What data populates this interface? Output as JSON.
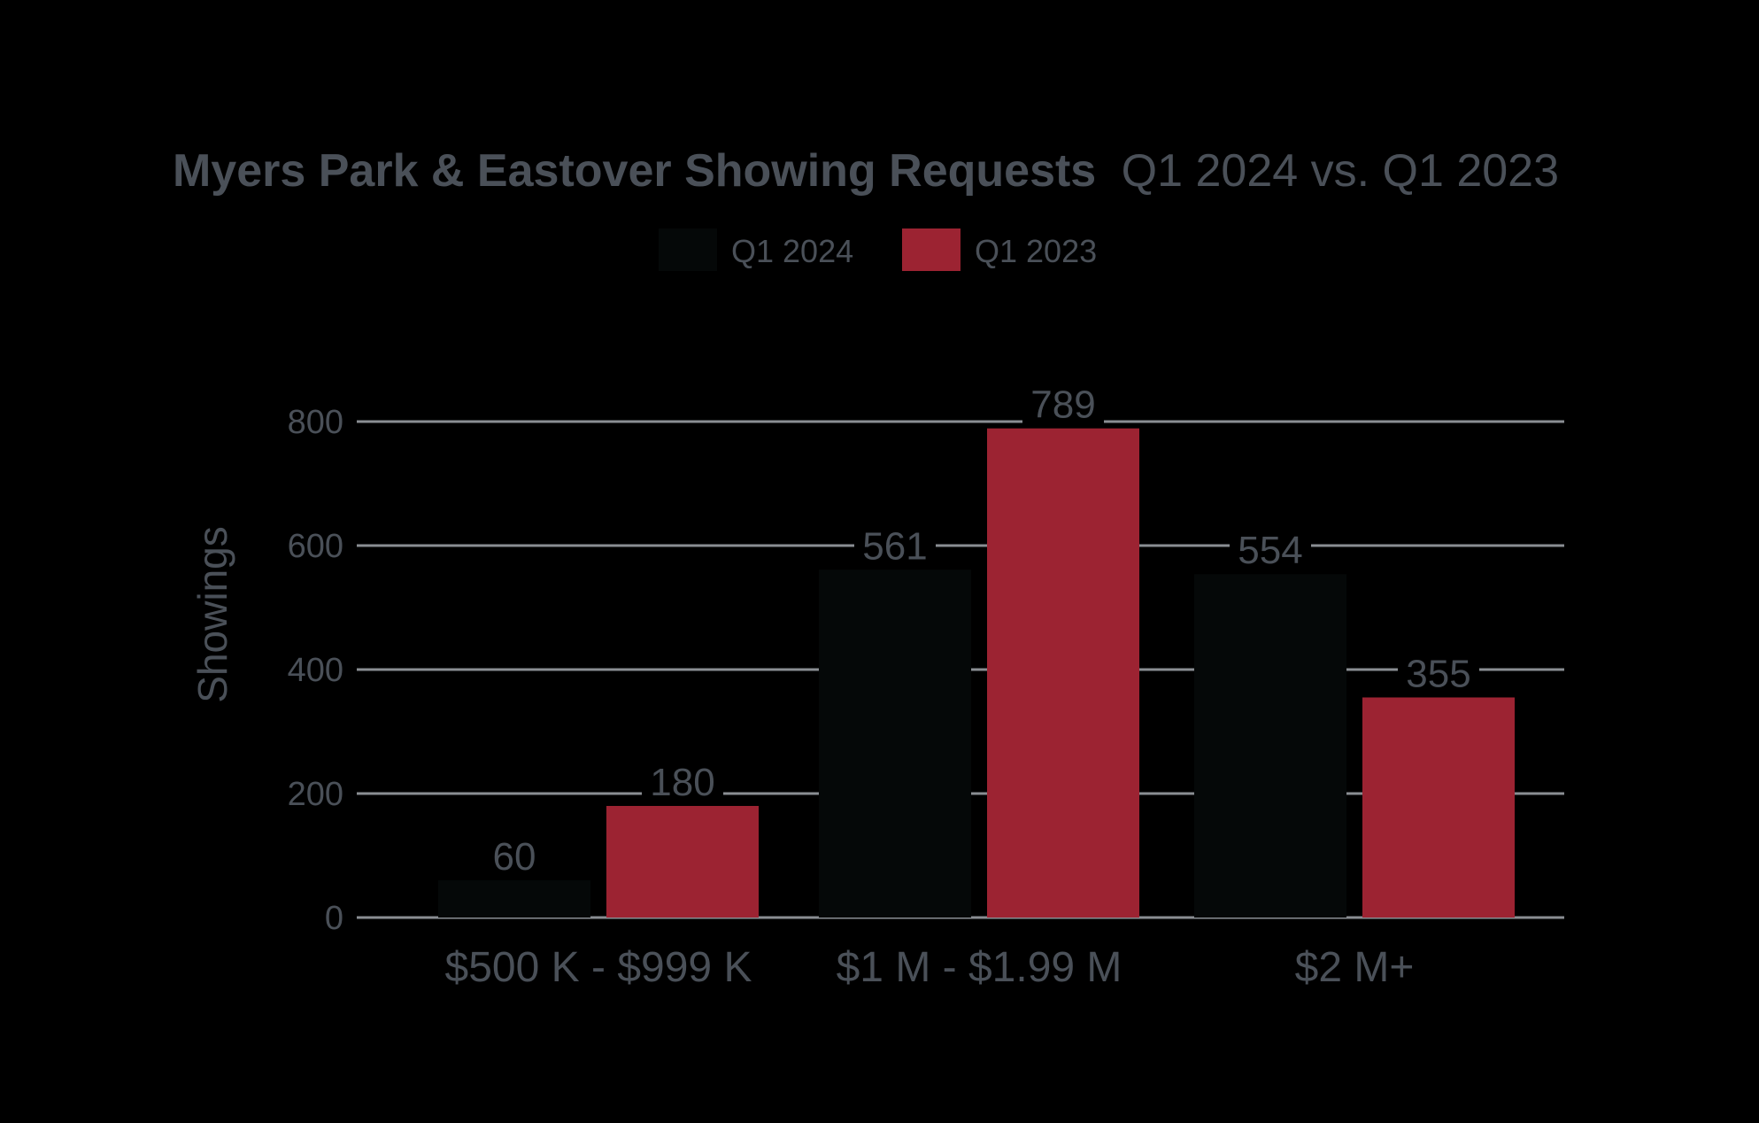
{
  "chart_data": {
    "type": "bar",
    "title_bold": "Myers Park & Eastover Showing Requests",
    "title_rest": "Q1 2024 vs. Q1 2023",
    "xlabel": "",
    "ylabel": "Showings",
    "ylim": [
      0,
      800
    ],
    "yticks": [
      0,
      200,
      400,
      600,
      800
    ],
    "grid": true,
    "legend_position": "top-center",
    "categories": [
      "$500 K - $999 K",
      "$1 M - $1.99 M",
      "$2 M+"
    ],
    "series": [
      {
        "name": "Q1 2024",
        "values": [
          60,
          561,
          554
        ],
        "color": "#050808"
      },
      {
        "name": "Q1 2023",
        "values": [
          180,
          789,
          355
        ],
        "color": "#9c2332"
      }
    ]
  },
  "colors": {
    "background": "#000000",
    "text": "#4a5058",
    "gridline": "#8a8e93"
  }
}
